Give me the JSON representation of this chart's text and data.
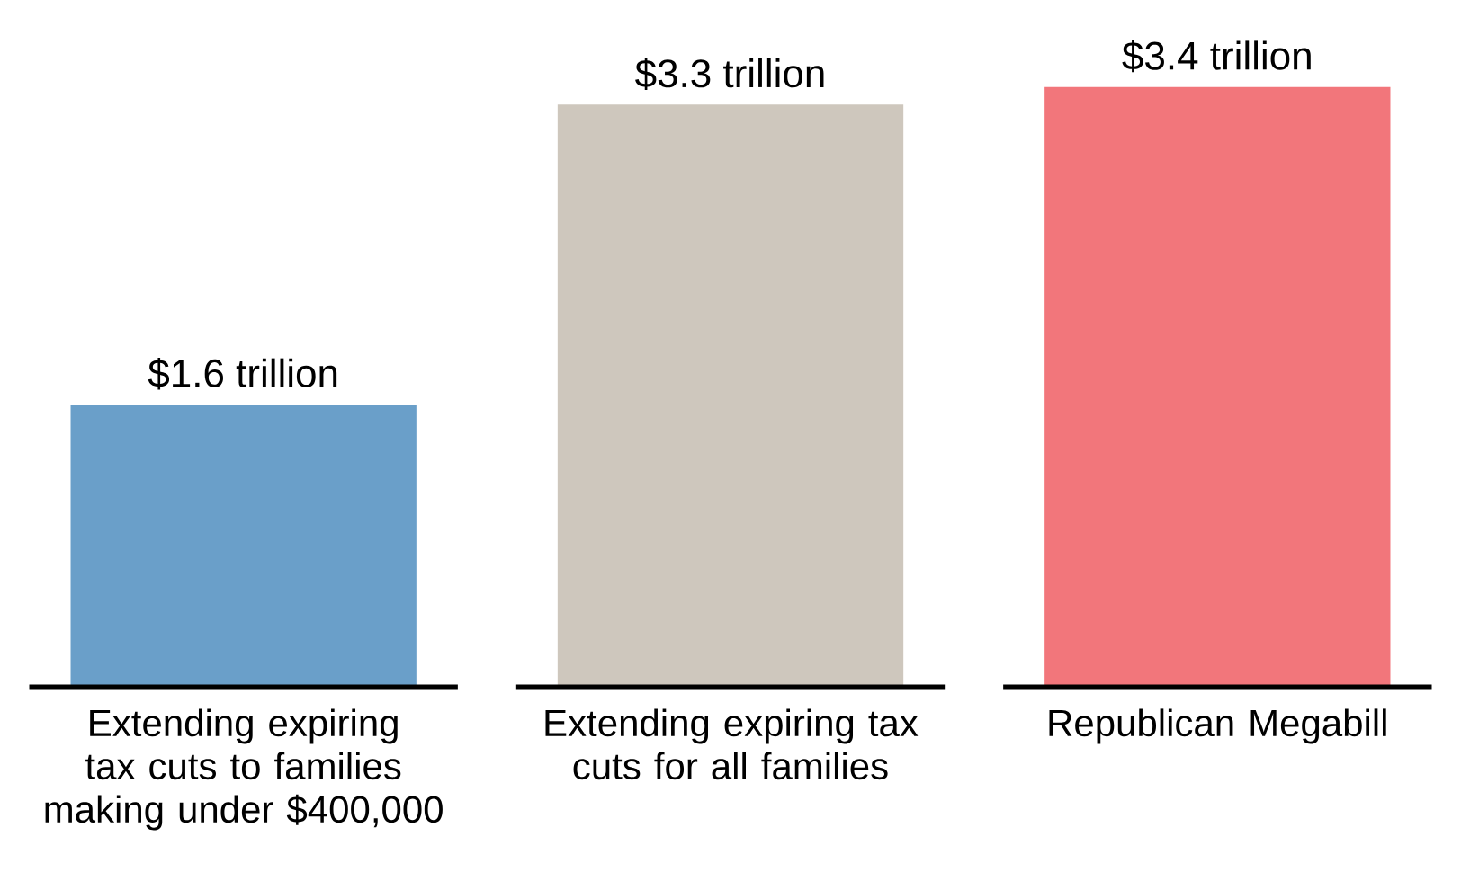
{
  "chart_data": {
    "type": "bar",
    "categories": [
      "Extending expiring tax cuts to families making under $400,000",
      "Extending expiring tax cuts for all families",
      "Republican Megabill"
    ],
    "values": [
      1.6,
      3.3,
      3.4
    ],
    "colors": [
      "#6a9fc9",
      "#cec7bd",
      "#f2767b"
    ],
    "value_labels": [
      "$1.6 trillion",
      "$3.3 trillion",
      "$3.4 trillion"
    ]
  }
}
